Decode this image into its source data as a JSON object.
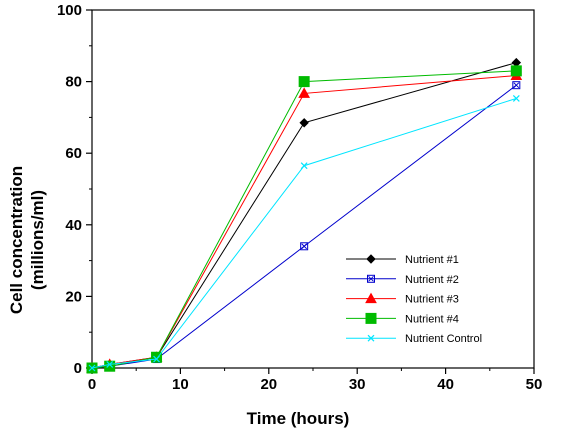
{
  "chart_data": {
    "type": "line",
    "title": "",
    "xlabel": "Time (hours)",
    "ylabel_line1": "Cell concentration",
    "ylabel_line2": "(millions/ml)",
    "xlim": [
      0,
      50
    ],
    "ylim": [
      0,
      100
    ],
    "xticks": [
      0,
      10,
      20,
      30,
      40,
      50
    ],
    "yticks": [
      0,
      20,
      40,
      60,
      80,
      100
    ],
    "xtick_labels": [
      "0",
      "10",
      "20",
      "30",
      "40",
      "50"
    ],
    "ytick_labels": [
      "0",
      "20",
      "40",
      "60",
      "80",
      "100"
    ],
    "grid": false,
    "legend_position": "lower-right",
    "series": [
      {
        "name": "Nutrient #1",
        "color": "#000000",
        "marker": "diamond",
        "x": [
          0,
          2,
          7.3,
          24,
          48
        ],
        "y": [
          0,
          1,
          3,
          68.5,
          85.3
        ]
      },
      {
        "name": "Nutrient #2",
        "color": "#0000cc",
        "marker": "square-x",
        "x": [
          0,
          2,
          7.3,
          24,
          48
        ],
        "y": [
          0,
          0.5,
          2.5,
          34,
          79
        ]
      },
      {
        "name": "Nutrient #3",
        "color": "#ff0000",
        "marker": "triangle",
        "x": [
          0,
          2,
          7.3,
          24,
          48
        ],
        "y": [
          0,
          1,
          3,
          76.7,
          81.7
        ]
      },
      {
        "name": "Nutrient #4",
        "color": "#00bb00",
        "marker": "square",
        "x": [
          0,
          2,
          7.3,
          24,
          48
        ],
        "y": [
          0,
          0.5,
          3,
          80,
          83
        ]
      },
      {
        "name": "Nutrient Control",
        "color": "#00e5ff",
        "marker": "x",
        "x": [
          0,
          2,
          7.3,
          24,
          48
        ],
        "y": [
          0,
          1,
          2.5,
          56.5,
          75.3
        ]
      }
    ]
  }
}
